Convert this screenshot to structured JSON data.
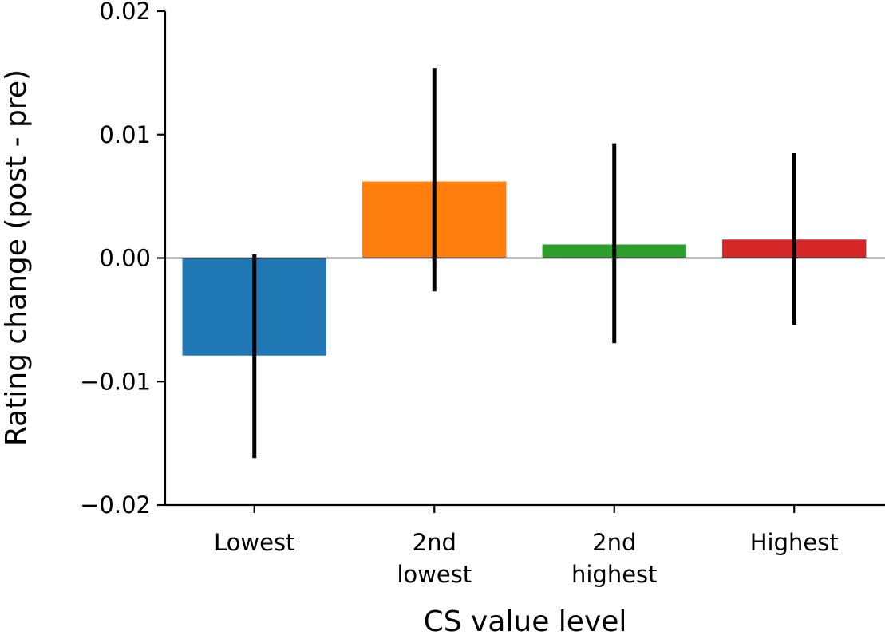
{
  "chart_data": {
    "type": "bar",
    "title": "",
    "xlabel": "CS value level",
    "ylabel": "Rating change (post - pre)",
    "categories": [
      [
        "Lowest"
      ],
      [
        "2nd",
        "lowest"
      ],
      [
        "2nd",
        "highest"
      ],
      [
        "Highest"
      ]
    ],
    "values": [
      -0.0079,
      0.0062,
      0.0011,
      0.0015
    ],
    "error_low": [
      -0.0162,
      -0.0027,
      -0.0069,
      -0.0054
    ],
    "error_high": [
      0.0003,
      0.0154,
      0.0093,
      0.0085
    ],
    "colors": [
      "#1f77b4",
      "#ff7f0e",
      "#2ca02c",
      "#d62728"
    ],
    "errorbar_color": "#000000",
    "ylim": [
      -0.02,
      0.02
    ],
    "yticks": [
      -0.02,
      -0.01,
      0.0,
      0.01,
      0.02
    ],
    "ytick_labels": [
      "−0.02",
      "−0.01",
      "0.00",
      "0.01",
      "0.02"
    ],
    "zero_line": true,
    "grid": false,
    "legend": "none"
  }
}
